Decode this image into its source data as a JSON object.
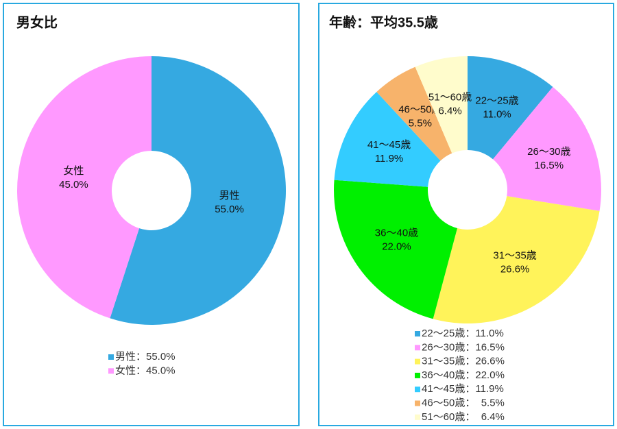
{
  "chart_data": [
    {
      "type": "pie",
      "donut": true,
      "title": "男女比",
      "categories": [
        "男性",
        "女性"
      ],
      "values": [
        55.0,
        45.0
      ],
      "value_labels": [
        "55.0%",
        "45.0%"
      ],
      "colors": [
        "#35a9e1",
        "#ff99ff"
      ],
      "legend_labels": [
        "男性：55.0%",
        "女性：45.0%"
      ]
    },
    {
      "type": "pie",
      "donut": true,
      "title": "年齢：平均35.5歳",
      "categories": [
        "22〜25歳",
        "26〜30歳",
        "31〜35歳",
        "36〜40歳",
        "41〜45歳",
        "46〜50歳",
        "51〜60歳"
      ],
      "values": [
        11.0,
        16.5,
        26.6,
        22.0,
        11.9,
        5.5,
        6.4
      ],
      "value_labels": [
        "11.0%",
        "16.5%",
        "26.6%",
        "22.0%",
        "11.9%",
        "5.5%",
        "6.4%"
      ],
      "colors": [
        "#35a9e1",
        "#ff99ff",
        "#fff35a",
        "#00f000",
        "#33ccff",
        "#f7b36b",
        "#fffccc"
      ],
      "legend_labels": [
        "22〜25歳：11.0%",
        "26〜30歳：16.5%",
        "31〜35歳：26.6%",
        "36〜40歳：22.0%",
        "41〜45歳：11.9%",
        "46〜50歳：  5.5%",
        "51〜60歳：  6.4%"
      ]
    }
  ]
}
